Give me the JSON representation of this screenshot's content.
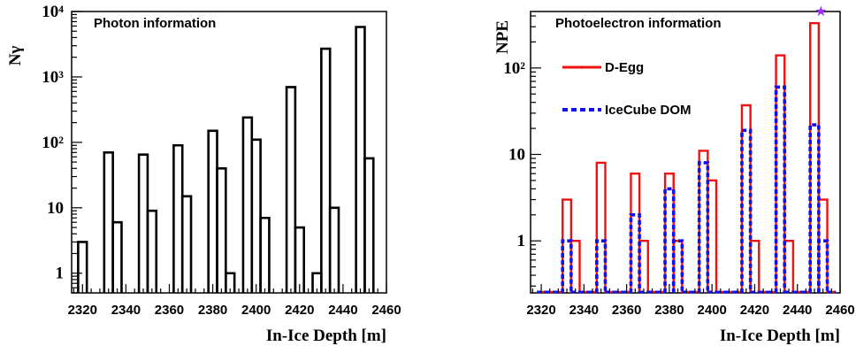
{
  "chart_data": [
    {
      "type": "histogram",
      "annotation": "Photon information",
      "xlabel": "In-Ice Depth [m]",
      "ylabel": "Nγ",
      "y_scale": "log",
      "xlim": [
        2315,
        2460
      ],
      "ylim": [
        0.5,
        10000
      ],
      "x_ticks": [
        "2320",
        "2340",
        "2360",
        "2380",
        "2400",
        "2420",
        "2440",
        "2460"
      ],
      "y_ticks": [
        "1",
        "10",
        "10²",
        "10³",
        "10⁴"
      ],
      "bin_width": 4,
      "series": [
        {
          "color": "#000000",
          "bins": [
            {
              "x": 2318,
              "y": 3
            },
            {
              "x": 2330,
              "y": 70
            },
            {
              "x": 2334,
              "y": 6
            },
            {
              "x": 2346,
              "y": 65
            },
            {
              "x": 2350,
              "y": 9
            },
            {
              "x": 2362,
              "y": 90
            },
            {
              "x": 2366,
              "y": 15
            },
            {
              "x": 2378,
              "y": 150
            },
            {
              "x": 2382,
              "y": 40
            },
            {
              "x": 2386,
              "y": 1
            },
            {
              "x": 2394,
              "y": 240
            },
            {
              "x": 2398,
              "y": 110
            },
            {
              "x": 2402,
              "y": 7
            },
            {
              "x": 2414,
              "y": 700
            },
            {
              "x": 2418,
              "y": 5
            },
            {
              "x": 2426,
              "y": 1
            },
            {
              "x": 2430,
              "y": 2700
            },
            {
              "x": 2434,
              "y": 10
            },
            {
              "x": 2446,
              "y": 5800
            },
            {
              "x": 2450,
              "y": 57
            }
          ]
        }
      ]
    },
    {
      "type": "histogram",
      "annotation": "Photoelectron information",
      "xlabel": "In-Ice Depth [m]",
      "ylabel": "NPE",
      "y_scale": "log",
      "xlim": [
        2315,
        2460
      ],
      "ylim": [
        0.25,
        450
      ],
      "x_ticks": [
        "2320",
        "2340",
        "2360",
        "2380",
        "2400",
        "2420",
        "2440",
        "2460"
      ],
      "y_ticks": [
        "1",
        "10",
        "10²"
      ],
      "bin_width": 4,
      "legend_position": "upper-left",
      "marker": {
        "x": 2451,
        "color": "#9b30ff",
        "symbol": "★"
      },
      "series": [
        {
          "name": "D-Egg",
          "color": "#ee1111",
          "style": "solid",
          "bins": [
            {
              "x": 2318,
              "y": 0.25
            },
            {
              "x": 2322,
              "y": 0.25
            },
            {
              "x": 2326,
              "y": 0.25
            },
            {
              "x": 2330,
              "y": 3
            },
            {
              "x": 2334,
              "y": 1
            },
            {
              "x": 2338,
              "y": 0.25
            },
            {
              "x": 2342,
              "y": 0.25
            },
            {
              "x": 2346,
              "y": 8
            },
            {
              "x": 2350,
              "y": 0.25
            },
            {
              "x": 2354,
              "y": 0.25
            },
            {
              "x": 2358,
              "y": 0.25
            },
            {
              "x": 2362,
              "y": 6
            },
            {
              "x": 2366,
              "y": 1
            },
            {
              "x": 2370,
              "y": 0.25
            },
            {
              "x": 2374,
              "y": 0.25
            },
            {
              "x": 2378,
              "y": 6
            },
            {
              "x": 2382,
              "y": 1
            },
            {
              "x": 2386,
              "y": 0.25
            },
            {
              "x": 2390,
              "y": 0.25
            },
            {
              "x": 2394,
              "y": 11
            },
            {
              "x": 2398,
              "y": 5
            },
            {
              "x": 2402,
              "y": 0.25
            },
            {
              "x": 2406,
              "y": 0.25
            },
            {
              "x": 2410,
              "y": 0.25
            },
            {
              "x": 2414,
              "y": 37
            },
            {
              "x": 2418,
              "y": 1
            },
            {
              "x": 2422,
              "y": 0.25
            },
            {
              "x": 2426,
              "y": 0.25
            },
            {
              "x": 2430,
              "y": 140
            },
            {
              "x": 2434,
              "y": 1
            },
            {
              "x": 2438,
              "y": 0.25
            },
            {
              "x": 2442,
              "y": 0.25
            },
            {
              "x": 2446,
              "y": 330
            },
            {
              "x": 2450,
              "y": 3
            },
            {
              "x": 2454,
              "y": 0.25
            }
          ]
        },
        {
          "name": "IceCube DOM",
          "color": "#1111ee",
          "style": "dashed",
          "bins": [
            {
              "x": 2318,
              "y": 0.25
            },
            {
              "x": 2322,
              "y": 0.25
            },
            {
              "x": 2326,
              "y": 0.25
            },
            {
              "x": 2330,
              "y": 1
            },
            {
              "x": 2334,
              "y": 0.25
            },
            {
              "x": 2338,
              "y": 0.25
            },
            {
              "x": 2342,
              "y": 0.25
            },
            {
              "x": 2346,
              "y": 1
            },
            {
              "x": 2350,
              "y": 0.25
            },
            {
              "x": 2354,
              "y": 0.25
            },
            {
              "x": 2358,
              "y": 0.25
            },
            {
              "x": 2362,
              "y": 2
            },
            {
              "x": 2366,
              "y": 0.25
            },
            {
              "x": 2370,
              "y": 0.25
            },
            {
              "x": 2374,
              "y": 0.25
            },
            {
              "x": 2378,
              "y": 4
            },
            {
              "x": 2382,
              "y": 1
            },
            {
              "x": 2386,
              "y": 0.25
            },
            {
              "x": 2390,
              "y": 0.25
            },
            {
              "x": 2394,
              "y": 8
            },
            {
              "x": 2398,
              "y": 0.25
            },
            {
              "x": 2402,
              "y": 0.25
            },
            {
              "x": 2406,
              "y": 0.25
            },
            {
              "x": 2410,
              "y": 0.25
            },
            {
              "x": 2414,
              "y": 19
            },
            {
              "x": 2418,
              "y": 0.25
            },
            {
              "x": 2422,
              "y": 0.25
            },
            {
              "x": 2426,
              "y": 0.25
            },
            {
              "x": 2430,
              "y": 60
            },
            {
              "x": 2434,
              "y": 0.25
            },
            {
              "x": 2438,
              "y": 0.25
            },
            {
              "x": 2442,
              "y": 0.25
            },
            {
              "x": 2446,
              "y": 22
            },
            {
              "x": 2450,
              "y": 1
            },
            {
              "x": 2454,
              "y": 0.25
            }
          ]
        }
      ]
    }
  ]
}
